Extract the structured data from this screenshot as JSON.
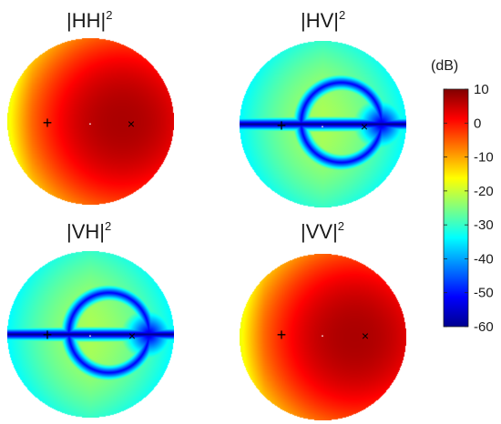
{
  "chart_data": {
    "type": "heatmap",
    "colorbar": {
      "unit_label": "(dB)",
      "range": [
        -60,
        10
      ],
      "ticks": [
        "10",
        "0",
        "-10",
        "-20",
        "-30",
        "-40",
        "-50",
        "-60"
      ],
      "colormap": "jet"
    },
    "panels": [
      {
        "id": "HH",
        "title_base": "|HH|",
        "title_sup": "2",
        "field": "copol",
        "levels": {
          "max_db": 7,
          "edge_db": -17
        },
        "markers": [
          "+",
          "·",
          "×"
        ]
      },
      {
        "id": "HV",
        "title_base": "|HV|",
        "title_sup": "2",
        "field": "crosspol",
        "levels": {
          "base_db": -30,
          "null_db": -60
        },
        "markers": [
          "+",
          "·",
          "×"
        ]
      },
      {
        "id": "VH",
        "title_base": "|VH|",
        "title_sup": "2",
        "field": "crosspol",
        "levels": {
          "base_db": -30,
          "null_db": -60
        },
        "markers": [
          "+",
          "·",
          "×"
        ]
      },
      {
        "id": "VV",
        "title_base": "|VV|",
        "title_sup": "2",
        "field": "copol",
        "levels": {
          "max_db": 7,
          "edge_db": -17
        },
        "markers": [
          "+",
          "·",
          "×"
        ]
      }
    ]
  }
}
